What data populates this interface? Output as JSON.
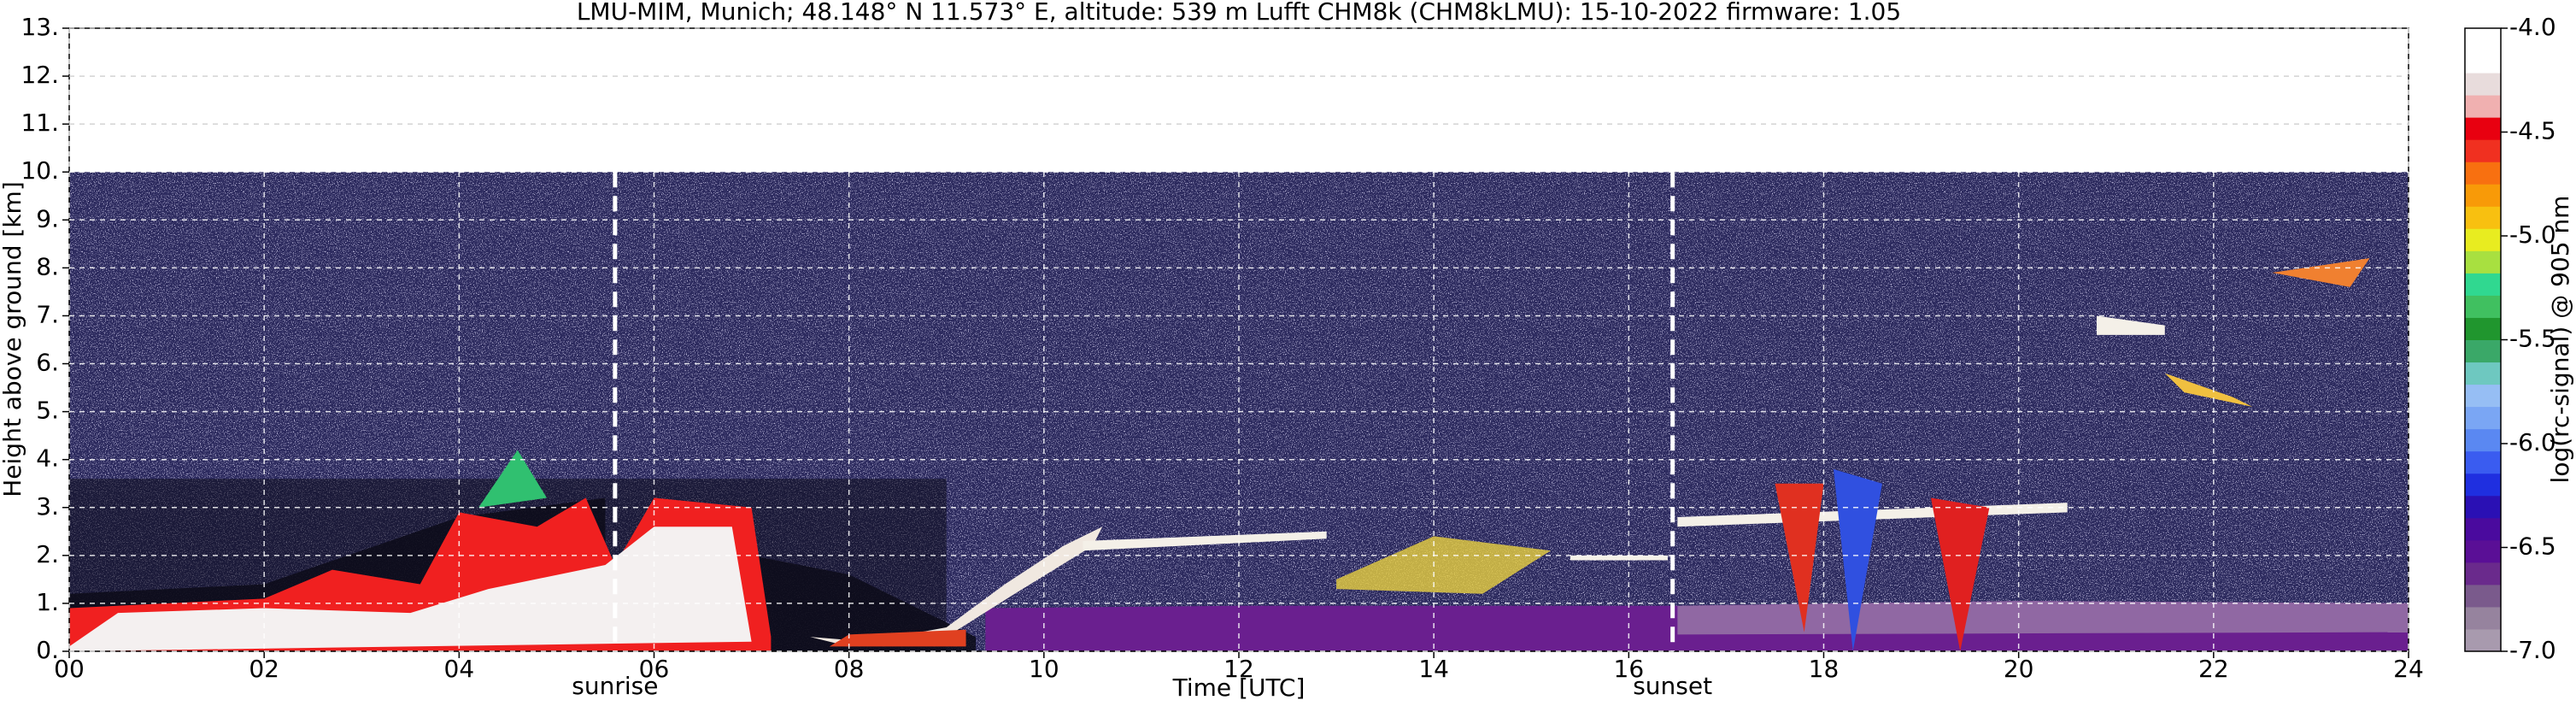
{
  "chart_data": {
    "type": "heatmap",
    "title": "LMU-MIM, Munich; 48.148° N 11.573° E, altitude: 539 m    Lufft CHM8k (CHM8kLMU): 15-10-2022    firmware: 1.05",
    "xlabel": "Time [UTC]",
    "ylabel": "Height above ground [km]",
    "xlim": [
      0,
      24
    ],
    "xticks": [
      {
        "value": 0,
        "label": "00"
      },
      {
        "value": 2,
        "label": "02"
      },
      {
        "value": 4,
        "label": "04"
      },
      {
        "value": 6,
        "label": "06"
      },
      {
        "value": 8,
        "label": "08"
      },
      10,
      12,
      14,
      16,
      18,
      20,
      22,
      24
    ],
    "ylim": [
      0,
      13
    ],
    "yticks": [
      {
        "value": 0,
        "label": "0."
      },
      {
        "value": 1,
        "label": "1."
      },
      {
        "value": 2,
        "label": "2."
      },
      {
        "value": 3,
        "label": "3."
      },
      {
        "value": 4,
        "label": "4."
      },
      {
        "value": 5,
        "label": "5."
      },
      {
        "value": 6,
        "label": "6."
      },
      {
        "value": 7,
        "label": "7."
      },
      {
        "value": 8,
        "label": "8."
      },
      {
        "value": 9,
        "label": "9."
      },
      {
        "value": 10,
        "label": "10."
      },
      {
        "value": 11,
        "label": "11."
      },
      {
        "value": 12,
        "label": "12."
      },
      {
        "value": 13,
        "label": "13."
      }
    ],
    "grid": true,
    "annotations": [
      {
        "text": "sunrise",
        "x": 5.6
      },
      {
        "text": "sunset",
        "x": 16.45
      }
    ],
    "colorbar": {
      "label": "log(rc-signal) @ 905 nm",
      "lim": [
        -7,
        -4
      ],
      "ticks": [
        {
          "value": -7,
          "label": "-7.0"
        },
        -6.5,
        {
          "value": -6,
          "label": "-6.0"
        },
        -5.5,
        {
          "value": -5,
          "label": "-5.0"
        },
        -4.5,
        {
          "value": -4,
          "label": "-4.0"
        }
      ],
      "colors": [
        "#a89aae",
        "#96839e",
        "#7a5a8c",
        "#6a2a8c",
        "#5a0f96",
        "#4a0a9e",
        "#2a10b4",
        "#1f2fe0",
        "#3a5cf0",
        "#5a88f2",
        "#7aa6f4",
        "#96bef4",
        "#6ec8c0",
        "#3aa868",
        "#20962e",
        "#40c060",
        "#30d890",
        "#a8e040",
        "#e8ec20",
        "#f8c010",
        "#f89a08",
        "#f87010",
        "#f03020",
        "#e80010",
        "#f0b0b0",
        "#e8dcdc",
        "#ffffff",
        "#ffffff"
      ]
    }
  }
}
